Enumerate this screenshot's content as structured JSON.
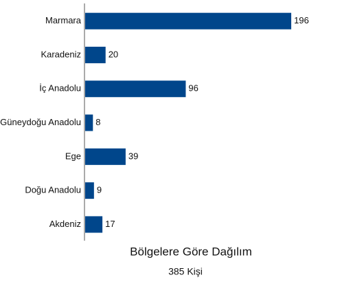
{
  "chart_data": {
    "type": "hbar",
    "title": "Bölgelere Göre Dağılım",
    "subtitle": "385 Kişi",
    "categories": [
      "Marmara",
      "Karadeniz",
      "İç Anadolu",
      "Güneydoğu Anadolu",
      "Ege",
      "Doğu Anadolu",
      "Akdeniz"
    ],
    "values": [
      196,
      20,
      96,
      8,
      39,
      9,
      17
    ],
    "color": "#00468b"
  }
}
